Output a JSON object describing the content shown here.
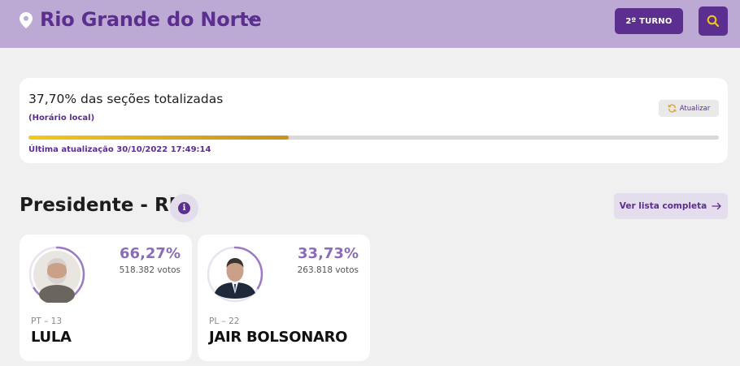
{
  "header": {
    "state_name": "Rio Grande do Norte",
    "turn_button": "2º TURNO"
  },
  "totals": {
    "sections_text": "37,70% das seções totalizadas",
    "local_time_note": "(Horário local)",
    "update_button": "Atualizar",
    "progress_percent": 37.7,
    "last_update": "Última atualização 30/10/2022 17:49:14"
  },
  "race": {
    "title": "Presidente - RN",
    "full_list_button": "Ver lista completa"
  },
  "candidates": [
    {
      "percent": "66,27%",
      "percent_value": 66.27,
      "votes": "518.382 votos",
      "party": "PT – 13",
      "name": "LULA"
    },
    {
      "percent": "33,73%",
      "percent_value": 33.73,
      "votes": "263.818 votos",
      "party": "PL – 22",
      "name": "JAIR BOLSONARO"
    }
  ],
  "colors": {
    "header_bg": "#bdaad4",
    "brand_purple": "#5b2e8f",
    "progress_gold": "#d4a321",
    "ring_purple": "#9b7bc4"
  },
  "icons": {
    "location": "map-pin-icon",
    "dropdown": "chevron-down-icon",
    "search": "search-icon",
    "refresh": "refresh-icon",
    "info": "info-icon",
    "arrow": "arrow-right-icon"
  }
}
